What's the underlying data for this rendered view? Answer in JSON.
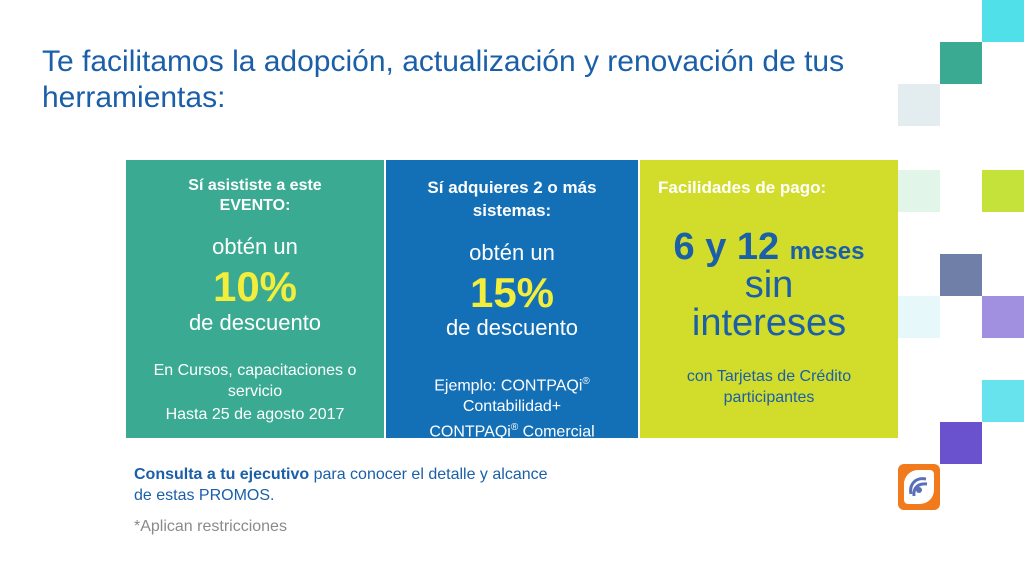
{
  "title": "Te facilitamos la adopción, actualización y renovación de tus herramientas:",
  "panels": [
    {
      "heading": "Sí asististe a este EVENTO:",
      "obten": "obtén un",
      "percent": "10%",
      "descuento": "de descuento",
      "detail": "En Cursos, capacitaciones o servicio",
      "date": "Hasta 25 de agosto 2017"
    },
    {
      "heading": "Sí adquieres 2 o más sistemas:",
      "obten": "obtén un",
      "percent": "15%",
      "descuento": "de descuento",
      "detail_line1": "Ejemplo: CONTPAQi",
      "detail_line2": "Contabilidad+",
      "detail_line3": "CONTPAQi",
      "detail_line3b": " Comercial",
      "registered": "®"
    },
    {
      "heading": "Facilidades de pago:",
      "big_number": "6 y 12",
      "meses": "meses",
      "sin": "sin",
      "intereses": "intereses",
      "detail": "con Tarjetas de Crédito participantes"
    }
  ],
  "footer": {
    "consulta_bold": "Consulta a tu ejecutivo",
    "consulta_rest": " para conocer el detalle y alcance de estas PROMOS.",
    "restricciones": "*Aplican restricciones"
  },
  "colors": {
    "panel1": "#3aab92",
    "panel2": "#1470b6",
    "panel3": "#d2dc2a",
    "accent_yellow": "#f3ee3b",
    "title_blue": "#1a5fa8",
    "logo_orange": "#f07a1c"
  },
  "logo_icon": "company-logo-icon"
}
